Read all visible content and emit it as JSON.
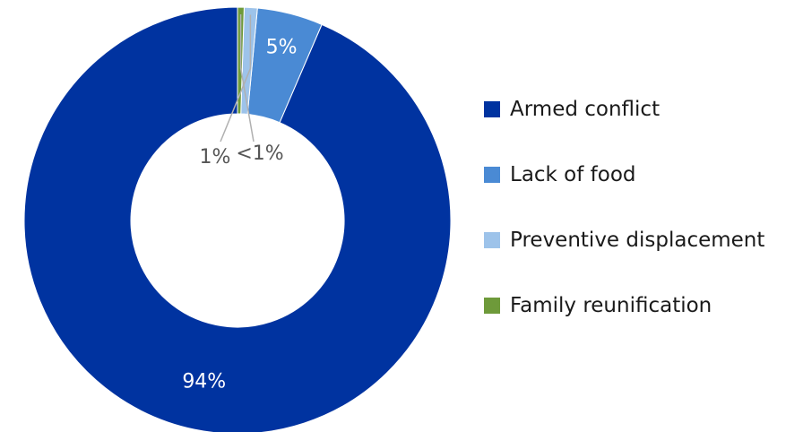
{
  "chart_data": {
    "type": "pie",
    "donut": true,
    "title": "",
    "categories": [
      "Armed conflict",
      "Lack of food",
      "Preventive displacement",
      "Family reunification"
    ],
    "values": [
      94,
      5,
      1,
      0.5
    ],
    "data_labels": [
      "94%",
      "5%",
      "1%",
      "<1%"
    ],
    "colors": [
      "#0033a0",
      "#4a8ad4",
      "#9dc3ea",
      "#6e9a3a"
    ],
    "legend_position": "right"
  }
}
